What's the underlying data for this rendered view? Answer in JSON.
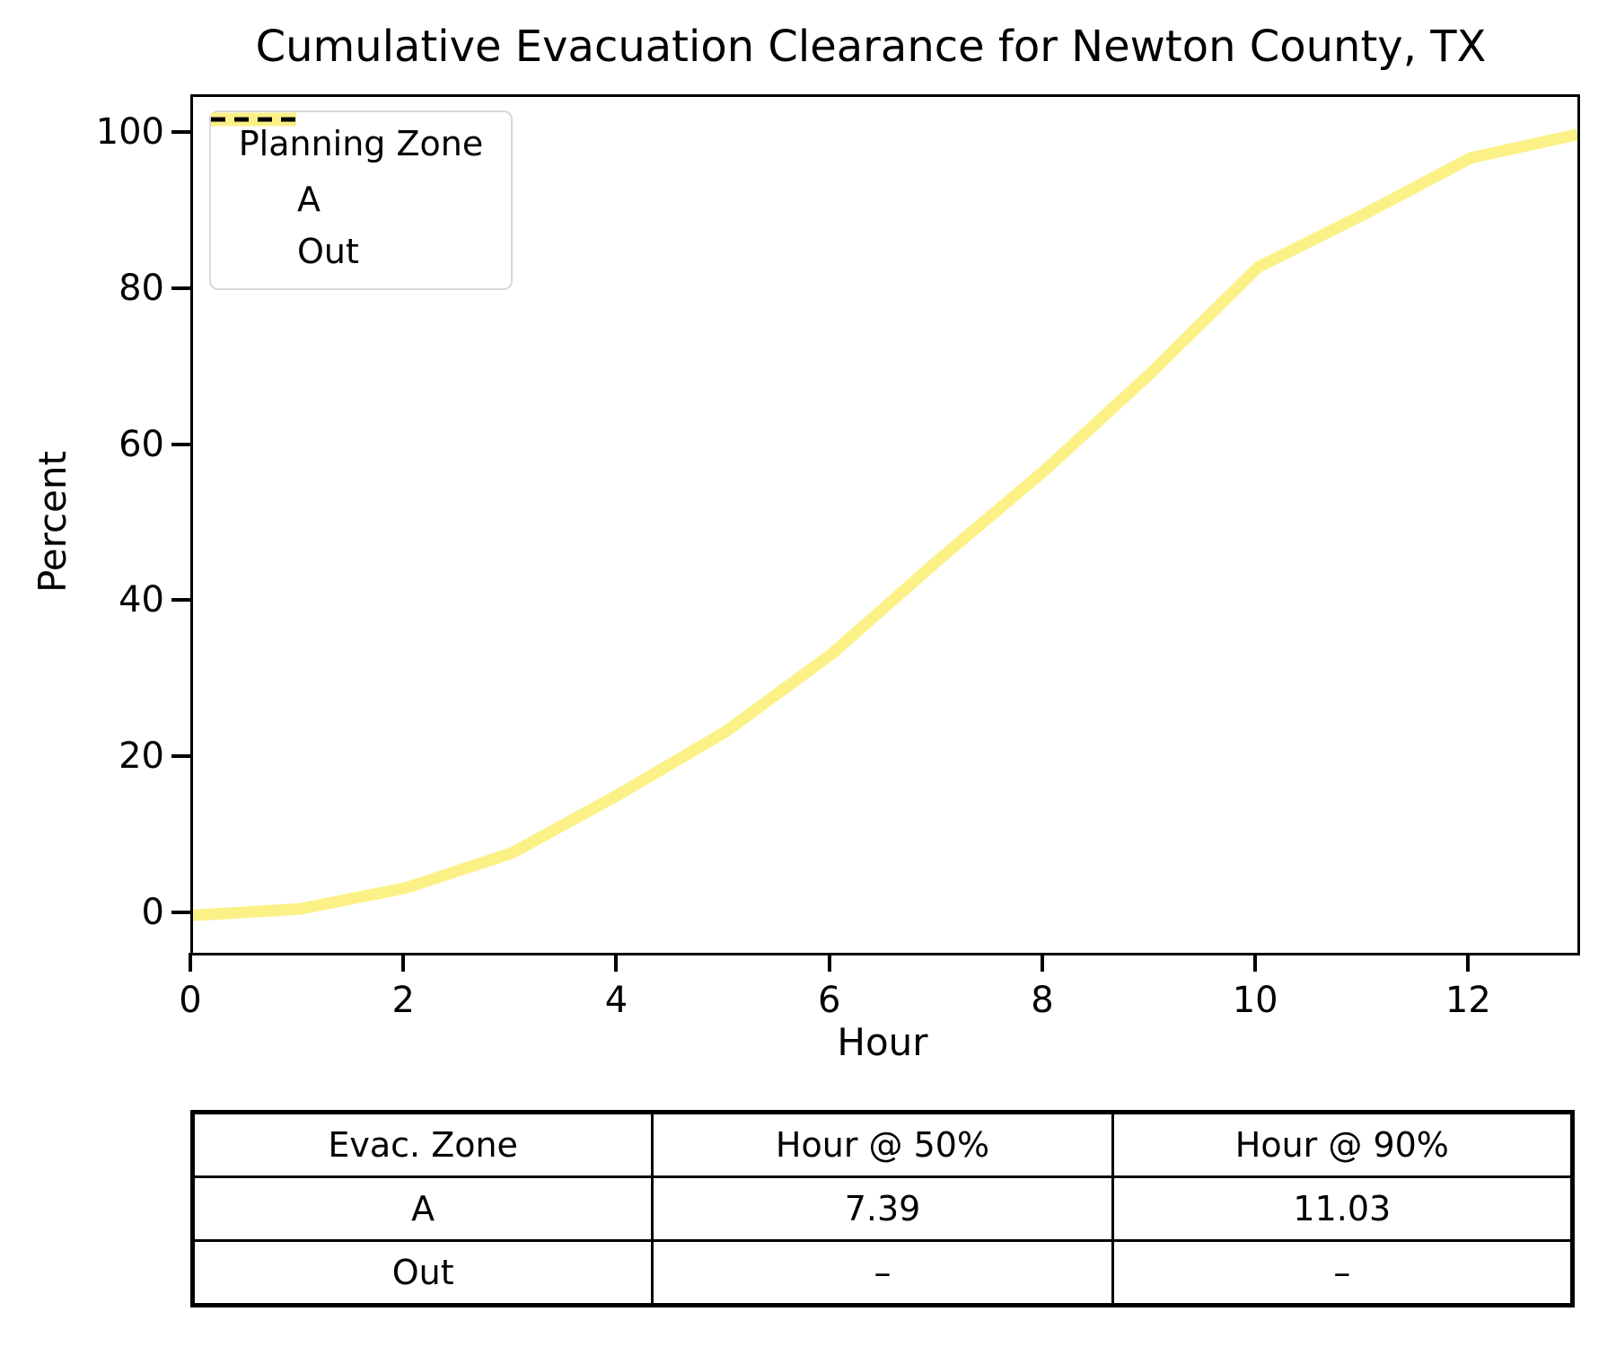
{
  "title": "Cumulative Evacuation Clearance for Newton County, TX",
  "chart_data": {
    "type": "line",
    "title": "Cumulative Evacuation Clearance for Newton County, TX",
    "xlabel": "Hour",
    "ylabel": "Percent",
    "xlim": [
      0,
      13
    ],
    "ylim": [
      -4.8,
      104.8
    ],
    "xticks": [
      0,
      2,
      4,
      6,
      8,
      10,
      12
    ],
    "yticks": [
      0,
      20,
      40,
      60,
      80,
      100
    ],
    "grid": false,
    "legend": {
      "title": "Planning Zone",
      "position": "upper left",
      "entries": [
        {
          "label": "A",
          "style": "solid",
          "color": "#FBF187"
        },
        {
          "label": "Out",
          "style": "dashed",
          "color": "#000000"
        }
      ]
    },
    "x": [
      0,
      1,
      2,
      3,
      4,
      5,
      6,
      7,
      8,
      9,
      10,
      11,
      12,
      13
    ],
    "series": [
      {
        "name": "A",
        "color": "#FBF187",
        "line_width": 13,
        "values": [
          0,
          0.8,
          3.5,
          8.0,
          15.5,
          23.5,
          33.5,
          45.5,
          57.0,
          69.5,
          83.0,
          89.8,
          97.0,
          100.0
        ]
      }
    ],
    "annotations": []
  },
  "table": {
    "headers": [
      "Evac. Zone",
      "Hour @ 50%",
      "Hour @ 90%"
    ],
    "rows": [
      [
        "A",
        "7.39",
        "11.03"
      ],
      [
        "Out",
        "–",
        "–"
      ]
    ]
  }
}
